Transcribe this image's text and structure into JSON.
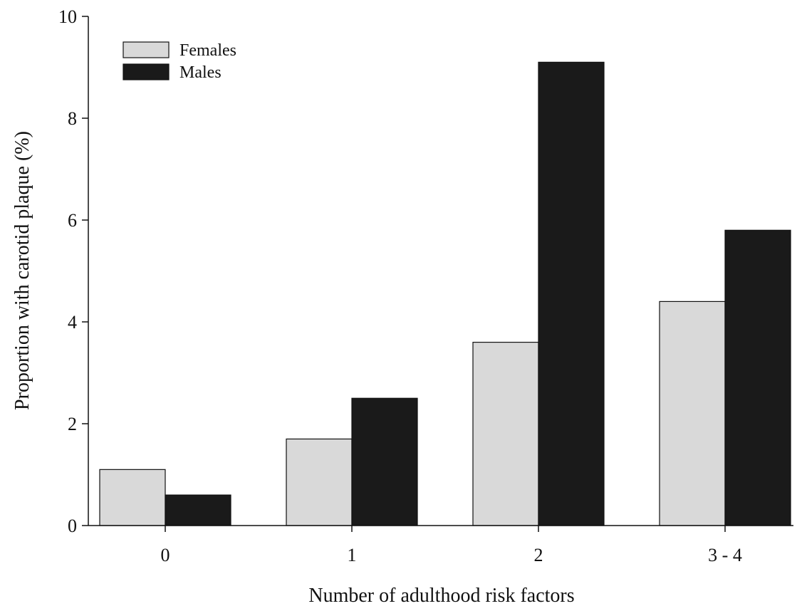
{
  "chart_data": {
    "type": "bar",
    "title": "",
    "xlabel": "Number of adulthood risk factors",
    "ylabel": "Proportion with carotid plaque (%)",
    "categories": [
      "0",
      "1",
      "2",
      "3 - 4"
    ],
    "series": [
      {
        "name": "Females",
        "values": [
          1.1,
          1.7,
          3.6,
          4.4
        ],
        "color": "#d9d9d9"
      },
      {
        "name": "Males",
        "values": [
          0.6,
          2.5,
          9.1,
          5.8
        ],
        "color": "#1a1a1a"
      }
    ],
    "ylim": [
      0,
      10
    ],
    "yticks": [
      "0",
      "2",
      "4",
      "6",
      "8",
      "10"
    ],
    "grid": false,
    "legend_position": "top-left"
  }
}
